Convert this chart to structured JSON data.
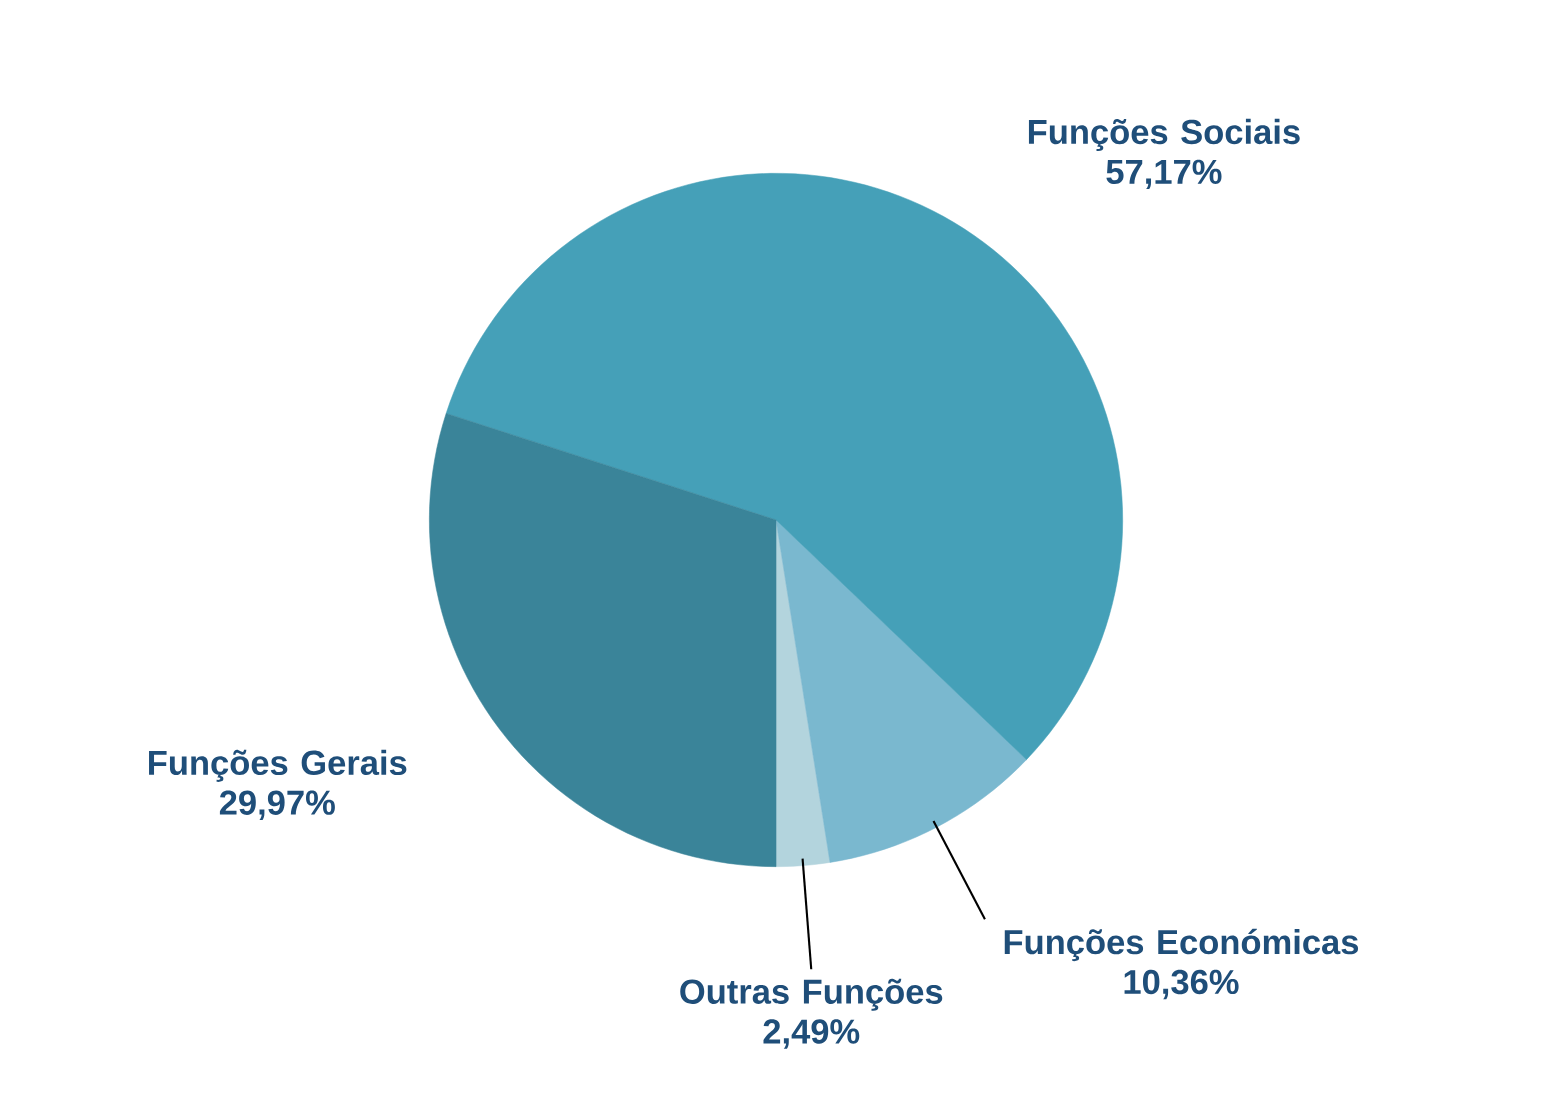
{
  "chart_data": {
    "type": "pie",
    "categories": [
      "Outras Funções",
      "Funções Económicas",
      "Funções Sociais",
      "Funções Gerais"
    ],
    "values": [
      2.49,
      10.36,
      57.17,
      29.97
    ],
    "value_labels": [
      "2,49%",
      "10,36%",
      "57,17%",
      "29,97%"
    ],
    "colors": [
      "#b3d4dd",
      "#7ab8cf",
      "#45a0b8",
      "#3a8499"
    ]
  }
}
